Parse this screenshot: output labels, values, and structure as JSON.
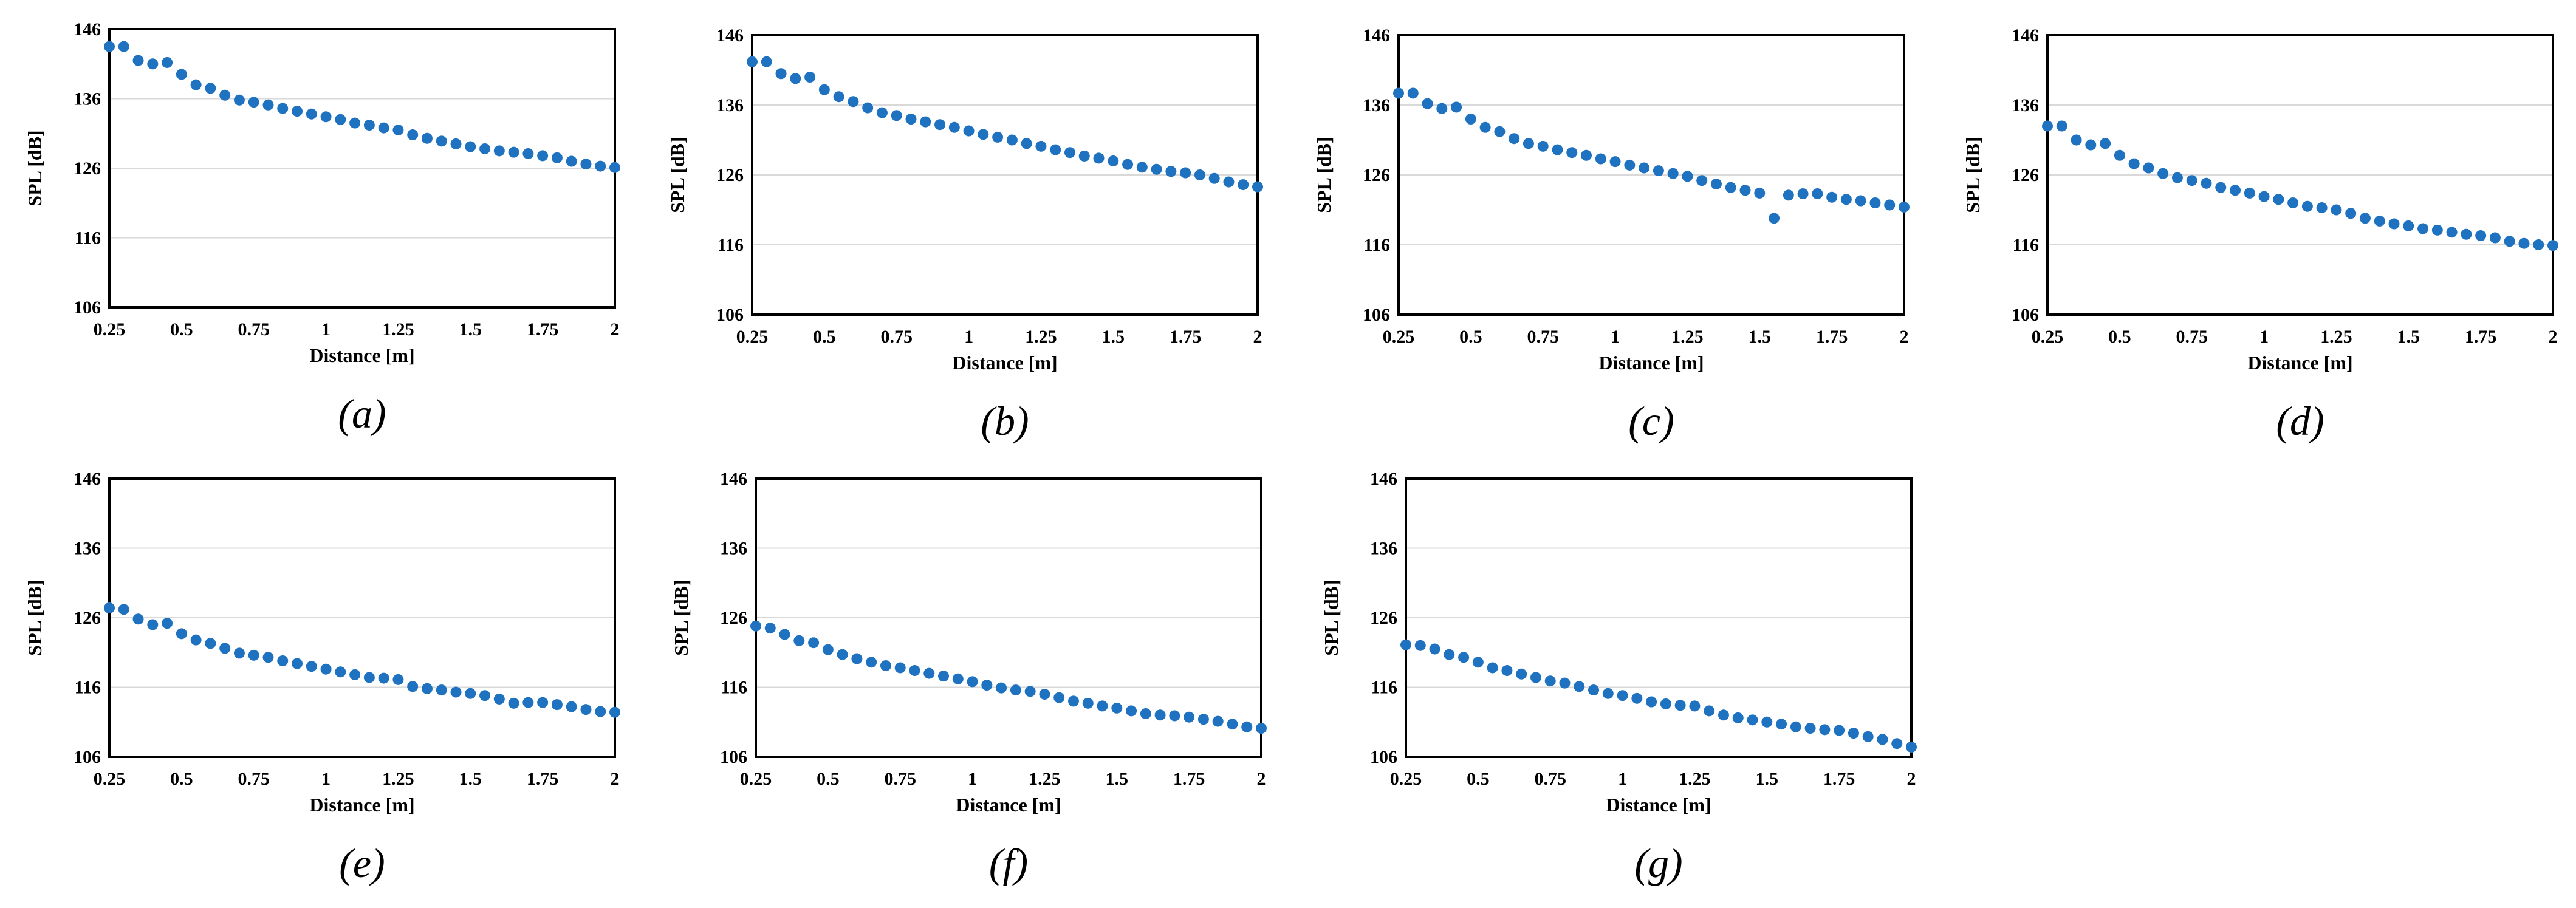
{
  "colors": {
    "marker": "#1F72C0",
    "grid": "#d9d9d9",
    "frame": "#000000"
  },
  "chart_data": [
    {
      "type": "scatter",
      "panel_label": "(a)",
      "xlabel": "Distance [m]",
      "ylabel": "SPL [dB]",
      "xlim": [
        0.25,
        2
      ],
      "ylim": [
        106,
        146
      ],
      "x_ticks": [
        "0.25",
        "0.5",
        "0.75",
        "1",
        "1.25",
        "1.5",
        "1.75",
        "2"
      ],
      "y_ticks": [
        "106",
        "116",
        "126",
        "136",
        "146"
      ],
      "grid": "horizontal",
      "x": [
        0.25,
        0.3,
        0.35,
        0.4,
        0.45,
        0.5,
        0.55,
        0.6,
        0.65,
        0.7,
        0.75,
        0.8,
        0.85,
        0.9,
        0.95,
        1,
        1.05,
        1.1,
        1.15,
        1.2,
        1.25,
        1.3,
        1.35,
        1.4,
        1.45,
        1.5,
        1.55,
        1.6,
        1.65,
        1.7,
        1.75,
        1.8,
        1.85,
        1.9,
        1.95,
        2
      ],
      "y": [
        143.5,
        143.5,
        141.5,
        141,
        141.2,
        139.5,
        138,
        137.5,
        136.5,
        135.8,
        135.5,
        135.1,
        134.6,
        134.2,
        133.8,
        133.4,
        133,
        132.5,
        132.2,
        131.8,
        131.5,
        130.8,
        130.3,
        129.9,
        129.5,
        129.1,
        128.8,
        128.5,
        128.3,
        128.1,
        127.8,
        127.5,
        127,
        126.6,
        126.3,
        126.1
      ]
    },
    {
      "type": "scatter",
      "panel_label": "(b)",
      "xlabel": "Distance [m]",
      "ylabel": "SPL [dB]",
      "xlim": [
        0.25,
        2
      ],
      "ylim": [
        106,
        146
      ],
      "x_ticks": [
        "0.25",
        "0.5",
        "0.75",
        "1",
        "1.25",
        "1.5",
        "1.75",
        "2"
      ],
      "y_ticks": [
        "106",
        "116",
        "126",
        "136",
        "146"
      ],
      "grid": "horizontal",
      "x": [
        0.25,
        0.3,
        0.35,
        0.4,
        0.45,
        0.5,
        0.55,
        0.6,
        0.65,
        0.7,
        0.75,
        0.8,
        0.85,
        0.9,
        0.95,
        1,
        1.05,
        1.1,
        1.15,
        1.2,
        1.25,
        1.3,
        1.35,
        1.4,
        1.45,
        1.5,
        1.55,
        1.6,
        1.65,
        1.7,
        1.75,
        1.8,
        1.85,
        1.9,
        1.95,
        2
      ],
      "y": [
        142.2,
        142.2,
        140.5,
        139.8,
        140,
        138.2,
        137.2,
        136.5,
        135.6,
        134.9,
        134.5,
        134,
        133.6,
        133.2,
        132.8,
        132.3,
        131.8,
        131.4,
        131,
        130.5,
        130.1,
        129.6,
        129.2,
        128.7,
        128.4,
        128,
        127.5,
        127.1,
        126.8,
        126.5,
        126.3,
        126,
        125.5,
        125,
        124.6,
        124.3
      ]
    },
    {
      "type": "scatter",
      "panel_label": "(c)",
      "xlabel": "Distance [m]",
      "ylabel": "SPL [dB]",
      "xlim": [
        0.25,
        2
      ],
      "ylim": [
        106,
        146
      ],
      "x_ticks": [
        "0.25",
        "0.5",
        "0.75",
        "1",
        "1.25",
        "1.5",
        "1.75",
        "2"
      ],
      "y_ticks": [
        "106",
        "116",
        "126",
        "136",
        "146"
      ],
      "grid": "horizontal",
      "x": [
        0.25,
        0.3,
        0.35,
        0.4,
        0.45,
        0.5,
        0.55,
        0.6,
        0.65,
        0.7,
        0.75,
        0.8,
        0.85,
        0.9,
        0.95,
        1,
        1.05,
        1.1,
        1.15,
        1.2,
        1.25,
        1.3,
        1.35,
        1.4,
        1.45,
        1.5,
        1.55,
        1.6,
        1.65,
        1.7,
        1.75,
        1.8,
        1.85,
        1.9,
        1.95,
        2
      ],
      "y": [
        137.7,
        137.7,
        136.2,
        135.5,
        135.7,
        134,
        132.8,
        132.2,
        131.2,
        130.5,
        130.1,
        129.6,
        129.2,
        128.8,
        128.3,
        127.9,
        127.4,
        127,
        126.6,
        126.2,
        125.8,
        125.2,
        124.7,
        124.2,
        123.8,
        123.4,
        119.8,
        123.1,
        123.3,
        123.3,
        122.8,
        122.5,
        122.3,
        122,
        121.7,
        121.4
      ]
    },
    {
      "type": "scatter",
      "panel_label": "(d)",
      "xlabel": "Distance [m]",
      "ylabel": "SPL [dB]",
      "xlim": [
        0.25,
        2
      ],
      "ylim": [
        106,
        146
      ],
      "x_ticks": [
        "0.25",
        "0.5",
        "0.75",
        "1",
        "1.25",
        "1.5",
        "1.75",
        "2"
      ],
      "y_ticks": [
        "106",
        "116",
        "126",
        "136",
        "146"
      ],
      "grid": "horizontal",
      "x": [
        0.25,
        0.3,
        0.35,
        0.4,
        0.45,
        0.5,
        0.55,
        0.6,
        0.65,
        0.7,
        0.75,
        0.8,
        0.85,
        0.9,
        0.95,
        1,
        1.05,
        1.1,
        1.15,
        1.2,
        1.25,
        1.3,
        1.35,
        1.4,
        1.45,
        1.5,
        1.55,
        1.6,
        1.65,
        1.7,
        1.75,
        1.8,
        1.85,
        1.9,
        1.95,
        2
      ],
      "y": [
        133,
        133,
        131,
        130.3,
        130.5,
        128.8,
        127.6,
        127,
        126.2,
        125.6,
        125.2,
        124.8,
        124.2,
        123.8,
        123.4,
        122.9,
        122.5,
        122,
        121.5,
        121.3,
        121,
        120.5,
        119.8,
        119.4,
        119,
        118.7,
        118.3,
        118.1,
        117.8,
        117.5,
        117.3,
        117,
        116.5,
        116.2,
        116,
        115.9
      ]
    },
    {
      "type": "scatter",
      "panel_label": "(e)",
      "xlabel": "Distance [m]",
      "ylabel": "SPL [dB]",
      "xlim": [
        0.25,
        2
      ],
      "ylim": [
        106,
        146
      ],
      "x_ticks": [
        "0.25",
        "0.5",
        "0.75",
        "1",
        "1.25",
        "1.5",
        "1.75",
        "2"
      ],
      "y_ticks": [
        "106",
        "116",
        "126",
        "136",
        "146"
      ],
      "grid": "horizontal",
      "x": [
        0.25,
        0.3,
        0.35,
        0.4,
        0.45,
        0.5,
        0.55,
        0.6,
        0.65,
        0.7,
        0.75,
        0.8,
        0.85,
        0.9,
        0.95,
        1,
        1.05,
        1.1,
        1.15,
        1.2,
        1.25,
        1.3,
        1.35,
        1.4,
        1.45,
        1.5,
        1.55,
        1.6,
        1.65,
        1.7,
        1.75,
        1.8,
        1.85,
        1.9,
        1.95,
        2
      ],
      "y": [
        127.4,
        127.2,
        125.8,
        125,
        125.2,
        123.7,
        122.8,
        122.3,
        121.6,
        120.9,
        120.6,
        120.3,
        119.8,
        119.4,
        119,
        118.6,
        118.2,
        117.8,
        117.4,
        117.3,
        117.1,
        116.1,
        115.8,
        115.6,
        115.3,
        115.1,
        114.8,
        114.3,
        113.7,
        113.8,
        113.8,
        113.5,
        113.2,
        112.8,
        112.5,
        112.4
      ]
    },
    {
      "type": "scatter",
      "panel_label": "(f)",
      "xlabel": "Distance [m]",
      "ylabel": "SPL [dB]",
      "xlim": [
        0.25,
        2
      ],
      "ylim": [
        106,
        146
      ],
      "x_ticks": [
        "0.25",
        "0.5",
        "0.75",
        "1",
        "1.25",
        "1.5",
        "1.75",
        "2"
      ],
      "y_ticks": [
        "106",
        "116",
        "126",
        "136",
        "146"
      ],
      "grid": "horizontal",
      "x": [
        0.25,
        0.3,
        0.35,
        0.4,
        0.45,
        0.5,
        0.55,
        0.6,
        0.65,
        0.7,
        0.75,
        0.8,
        0.85,
        0.9,
        0.95,
        1,
        1.05,
        1.1,
        1.15,
        1.2,
        1.25,
        1.3,
        1.35,
        1.4,
        1.45,
        1.5,
        1.55,
        1.6,
        1.65,
        1.7,
        1.75,
        1.8,
        1.85,
        1.9,
        1.95,
        2
      ],
      "y": [
        124.8,
        124.5,
        123.6,
        122.7,
        122.4,
        121.4,
        120.7,
        120.1,
        119.6,
        119.1,
        118.8,
        118.4,
        118,
        117.6,
        117.2,
        116.8,
        116.3,
        115.9,
        115.6,
        115.4,
        115,
        114.5,
        114,
        113.7,
        113.3,
        113,
        112.6,
        112.2,
        112,
        111.9,
        111.7,
        111.4,
        111.1,
        110.7,
        110.3,
        110.1
      ]
    },
    {
      "type": "scatter",
      "panel_label": "(g)",
      "xlabel": "Distance [m]",
      "ylabel": "SPL [dB]",
      "xlim": [
        0.25,
        2
      ],
      "ylim": [
        106,
        146
      ],
      "x_ticks": [
        "0.25",
        "0.5",
        "0.75",
        "1",
        "1.25",
        "1.5",
        "1.75",
        "2"
      ],
      "y_ticks": [
        "106",
        "116",
        "126",
        "136",
        "146"
      ],
      "grid": "horizontal",
      "x": [
        0.25,
        0.3,
        0.35,
        0.4,
        0.45,
        0.5,
        0.55,
        0.6,
        0.65,
        0.7,
        0.75,
        0.8,
        0.85,
        0.9,
        0.95,
        1,
        1.05,
        1.1,
        1.15,
        1.2,
        1.25,
        1.3,
        1.35,
        1.4,
        1.45,
        1.5,
        1.55,
        1.6,
        1.65,
        1.7,
        1.75,
        1.8,
        1.85,
        1.9,
        1.95,
        2
      ],
      "y": [
        122.1,
        122,
        121.5,
        120.7,
        120.3,
        119.6,
        118.8,
        118.4,
        117.9,
        117.4,
        116.9,
        116.6,
        116.1,
        115.6,
        115.1,
        114.8,
        114.4,
        113.9,
        113.6,
        113.4,
        113.3,
        112.6,
        112,
        111.6,
        111.3,
        111,
        110.7,
        110.3,
        110.1,
        109.9,
        109.8,
        109.4,
        108.9,
        108.5,
        107.9,
        107.4
      ]
    }
  ]
}
